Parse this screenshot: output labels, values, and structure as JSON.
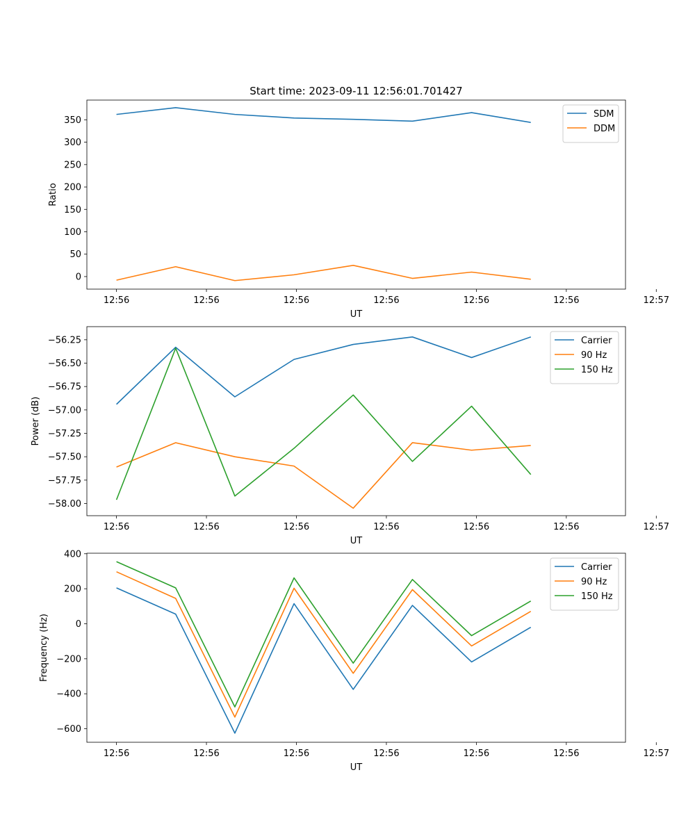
{
  "figure": {
    "title": "Start time: 2023-09-11 12:56:01.701427"
  },
  "colors": {
    "blue": "#1f77b4",
    "orange": "#ff7f0e",
    "green": "#2ca02c"
  },
  "chart_data": [
    {
      "type": "line",
      "title": "Start time: 2023-09-11 12:56:01.701427",
      "xlabel": "UT",
      "ylabel": "Ratio",
      "xlim": [
        -0.5,
        8.6
      ],
      "ylim": [
        -28,
        394
      ],
      "xticks": [
        {
          "v": 0,
          "label": "12:56"
        },
        {
          "v": 1.52,
          "label": "12:56"
        },
        {
          "v": 3.04,
          "label": "12:56"
        },
        {
          "v": 4.56,
          "label": "12:56"
        },
        {
          "v": 6.08,
          "label": "12:56"
        },
        {
          "v": 7.6,
          "label": "12:56"
        },
        {
          "v": 9.12,
          "label": "12:57"
        }
      ],
      "yticks": [
        {
          "v": 0,
          "label": "0"
        },
        {
          "v": 50,
          "label": "50"
        },
        {
          "v": 100,
          "label": "100"
        },
        {
          "v": 150,
          "label": "150"
        },
        {
          "v": 200,
          "label": "200"
        },
        {
          "v": 250,
          "label": "250"
        },
        {
          "v": 300,
          "label": "300"
        },
        {
          "v": 350,
          "label": "350"
        }
      ],
      "legend": "top-right",
      "x": [
        0,
        1,
        2,
        3,
        4,
        5,
        6,
        7
      ],
      "series": [
        {
          "name": "SDM",
          "color": "#1f77b4",
          "values": [
            362,
            377,
            362,
            354,
            351,
            347,
            366,
            344
          ]
        },
        {
          "name": "DDM",
          "color": "#ff7f0e",
          "values": [
            -8,
            22,
            -9,
            4,
            25,
            -4,
            10,
            -6
          ]
        }
      ]
    },
    {
      "type": "line",
      "title": "",
      "xlabel": "UT",
      "ylabel": "Power (dB)",
      "xlim": [
        -0.5,
        8.6
      ],
      "ylim": [
        -58.13,
        -56.11
      ],
      "xticks": [
        {
          "v": 0,
          "label": "12:56"
        },
        {
          "v": 1.52,
          "label": "12:56"
        },
        {
          "v": 3.04,
          "label": "12:56"
        },
        {
          "v": 4.56,
          "label": "12:56"
        },
        {
          "v": 6.08,
          "label": "12:56"
        },
        {
          "v": 7.6,
          "label": "12:56"
        },
        {
          "v": 9.12,
          "label": "12:57"
        }
      ],
      "yticks": [
        {
          "v": -58.0,
          "label": "−58.00"
        },
        {
          "v": -57.75,
          "label": "−57.75"
        },
        {
          "v": -57.5,
          "label": "−57.50"
        },
        {
          "v": -57.25,
          "label": "−57.25"
        },
        {
          "v": -57.0,
          "label": "−57.00"
        },
        {
          "v": -56.75,
          "label": "−56.75"
        },
        {
          "v": -56.5,
          "label": "−56.50"
        },
        {
          "v": -56.25,
          "label": "−56.25"
        }
      ],
      "legend": "top-right",
      "x": [
        0,
        1,
        2,
        3,
        4,
        5,
        6,
        7
      ],
      "series": [
        {
          "name": "Carrier",
          "color": "#1f77b4",
          "values": [
            -56.94,
            -56.33,
            -56.86,
            -56.46,
            -56.3,
            -56.22,
            -56.44,
            -56.22
          ]
        },
        {
          "name": "90 Hz",
          "color": "#ff7f0e",
          "values": [
            -57.61,
            -57.35,
            -57.5,
            -57.6,
            -58.05,
            -57.35,
            -57.43,
            -57.38
          ]
        },
        {
          "name": "150 Hz",
          "color": "#2ca02c",
          "values": [
            -57.96,
            -56.34,
            -57.92,
            -57.41,
            -56.84,
            -57.55,
            -56.96,
            -57.69
          ]
        }
      ]
    },
    {
      "type": "line",
      "title": "",
      "xlabel": "UT",
      "ylabel": "Frequency (Hz)",
      "xlim": [
        -0.5,
        8.6
      ],
      "ylim": [
        -677,
        403
      ],
      "xticks": [
        {
          "v": 0,
          "label": "12:56"
        },
        {
          "v": 1.52,
          "label": "12:56"
        },
        {
          "v": 3.04,
          "label": "12:56"
        },
        {
          "v": 4.56,
          "label": "12:56"
        },
        {
          "v": 6.08,
          "label": "12:56"
        },
        {
          "v": 7.6,
          "label": "12:56"
        },
        {
          "v": 9.12,
          "label": "12:57"
        }
      ],
      "yticks": [
        {
          "v": -600,
          "label": "−600"
        },
        {
          "v": -400,
          "label": "−400"
        },
        {
          "v": -200,
          "label": "−200"
        },
        {
          "v": 0,
          "label": "0"
        },
        {
          "v": 200,
          "label": "200"
        },
        {
          "v": 400,
          "label": "400"
        }
      ],
      "legend": "top-right",
      "x": [
        0,
        1,
        2,
        3,
        4,
        5,
        6,
        7
      ],
      "series": [
        {
          "name": "Carrier",
          "color": "#1f77b4",
          "values": [
            205,
            55,
            -625,
            115,
            -375,
            105,
            -218,
            -20
          ]
        },
        {
          "name": "90 Hz",
          "color": "#ff7f0e",
          "values": [
            297,
            145,
            -533,
            203,
            -283,
            195,
            -127,
            71
          ]
        },
        {
          "name": "150 Hz",
          "color": "#2ca02c",
          "values": [
            355,
            205,
            -475,
            262,
            -225,
            253,
            -68,
            130
          ]
        }
      ]
    }
  ]
}
